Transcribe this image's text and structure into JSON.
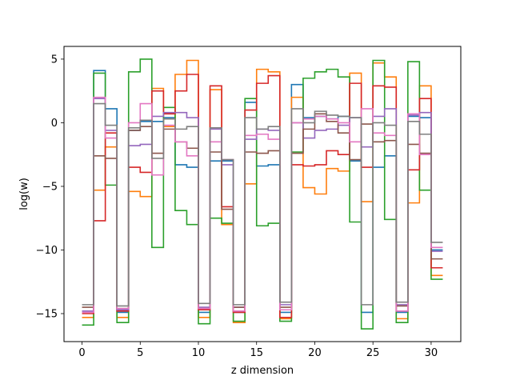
{
  "chart_data": {
    "type": "line",
    "drawstyle": "steps-post",
    "xlabel": "z dimension",
    "ylabel": "log(w)",
    "xlim": [
      -1.55,
      32.55
    ],
    "ylim": [
      -17.2,
      6.0
    ],
    "xticks": [
      0,
      5,
      10,
      15,
      20,
      25,
      30
    ],
    "xtick_labels": [
      "0",
      "5",
      "10",
      "15",
      "20",
      "25",
      "30"
    ],
    "yticks": [
      5,
      0,
      -5,
      -10,
      -15
    ],
    "ytick_labels": [
      "5",
      "0",
      "−5",
      "−10",
      "−15"
    ],
    "grid": false,
    "legend": "none",
    "x": [
      0,
      1,
      2,
      3,
      4,
      5,
      6,
      7,
      8,
      9,
      10,
      11,
      12,
      13,
      14,
      15,
      16,
      17,
      18,
      19,
      20,
      21,
      22,
      23,
      24,
      25,
      26,
      27,
      28,
      29,
      30,
      31
    ],
    "series": [
      {
        "color": "#1f77b4",
        "values": [
          -14.8,
          4.1,
          1.1,
          -14.9,
          -0.6,
          0.1,
          0.1,
          0.4,
          -3.3,
          -3.5,
          -14.9,
          -3.0,
          -3.0,
          -14.9,
          1.6,
          -3.4,
          -3.3,
          -14.9,
          3.0,
          0.4,
          0.5,
          0.3,
          0.5,
          -3.0,
          -14.9,
          -3.5,
          -2.6,
          -14.9,
          0.5,
          0.4,
          -10.0,
          -10.0
        ]
      },
      {
        "color": "#ff7f0e",
        "values": [
          -15.3,
          -5.3,
          -1.9,
          -15.3,
          -5.4,
          -5.8,
          2.7,
          -0.3,
          3.8,
          4.9,
          -15.3,
          2.6,
          -8.0,
          -15.7,
          -4.8,
          4.2,
          4.0,
          -15.4,
          2.0,
          -5.1,
          -5.6,
          -3.6,
          -3.8,
          3.9,
          -6.2,
          4.7,
          3.6,
          -15.4,
          -6.3,
          2.9,
          -12.0,
          -12.0
        ]
      },
      {
        "color": "#2ca02c",
        "values": [
          -15.9,
          3.9,
          -4.9,
          -15.7,
          4.0,
          5.0,
          -9.8,
          1.2,
          -6.9,
          -8.0,
          -15.8,
          -7.5,
          -7.9,
          -15.6,
          1.9,
          -8.1,
          -7.9,
          -15.6,
          -2.3,
          3.5,
          4.0,
          4.2,
          3.6,
          -7.8,
          -16.2,
          4.9,
          -7.6,
          -15.7,
          4.8,
          -5.3,
          -12.3,
          -12.3
        ]
      },
      {
        "color": "#d62728",
        "values": [
          -15.0,
          -7.7,
          -0.8,
          -14.8,
          -3.5,
          -3.9,
          2.5,
          0.7,
          2.5,
          3.8,
          -14.7,
          2.9,
          -6.6,
          -14.9,
          1.0,
          3.1,
          3.7,
          -15.3,
          -3.3,
          -3.4,
          -3.3,
          -2.2,
          -2.5,
          3.1,
          -3.5,
          2.9,
          2.8,
          -14.8,
          -3.7,
          1.9,
          -11.4,
          -11.4
        ]
      },
      {
        "color": "#9467bd",
        "values": [
          -14.8,
          1.9,
          -0.6,
          -14.7,
          -1.8,
          -1.7,
          0.5,
          0.8,
          0.8,
          0.4,
          -14.5,
          -0.5,
          -3.3,
          -14.5,
          -1.3,
          -0.5,
          -0.6,
          -14.3,
          0.0,
          -1.2,
          -0.6,
          -0.5,
          -0.2,
          0.4,
          -1.9,
          0.5,
          1.1,
          -14.3,
          0.6,
          0.8,
          -10.1,
          -10.1
        ]
      },
      {
        "color": "#8c564b",
        "values": [
          -14.5,
          -2.6,
          -2.8,
          -14.6,
          -0.6,
          -0.3,
          -2.4,
          -0.5,
          -1.5,
          -2.0,
          -14.6,
          -2.3,
          -6.8,
          -14.5,
          -2.3,
          -2.4,
          -2.2,
          -14.5,
          -2.4,
          -0.5,
          0.7,
          0.1,
          -0.8,
          -2.9,
          -0.1,
          -1.5,
          -1.4,
          -14.4,
          -1.7,
          -2.4,
          -10.7,
          -10.7
        ]
      },
      {
        "color": "#e377c2",
        "values": [
          -14.9,
          2.0,
          -1.2,
          -14.6,
          0.0,
          1.5,
          -4.1,
          -0.2,
          -1.5,
          -2.6,
          -14.6,
          -1.5,
          -2.9,
          -14.8,
          -1.0,
          -0.9,
          -1.3,
          -14.7,
          0.0,
          0.3,
          0.5,
          0.3,
          0.0,
          -1.5,
          1.1,
          -0.8,
          -1.0,
          -14.8,
          0.7,
          -2.5,
          -9.8,
          -9.8
        ]
      },
      {
        "color": "#7f7f7f",
        "values": [
          -14.3,
          1.5,
          -0.2,
          -14.4,
          -0.4,
          0.2,
          -2.8,
          0.3,
          -0.5,
          -0.3,
          -14.2,
          -0.4,
          -2.9,
          -14.3,
          0.4,
          -0.5,
          -0.3,
          -14.1,
          1.1,
          0.0,
          0.9,
          0.6,
          0.5,
          0.4,
          -14.3,
          0.0,
          -0.2,
          -14.1,
          0.1,
          -0.9,
          -9.4,
          -9.4
        ]
      }
    ]
  }
}
